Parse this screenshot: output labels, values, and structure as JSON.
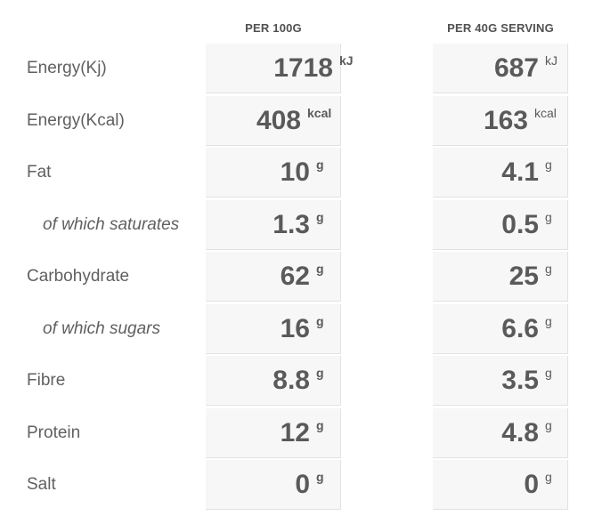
{
  "headers": {
    "per_100g": "PER 100G",
    "per_serving": "PER 40G SERVING"
  },
  "rows": [
    {
      "label": "Energy(Kj)",
      "per_100g": "1718",
      "per_100g_unit": "kJ",
      "per_serving": "687",
      "per_serving_unit": "kJ"
    },
    {
      "label": "Energy(Kcal)",
      "per_100g": "408",
      "per_100g_unit": "kcal",
      "per_serving": "163",
      "per_serving_unit": "kcal"
    },
    {
      "label": "Fat",
      "per_100g": "10",
      "per_100g_unit": "g",
      "per_serving": "4.1",
      "per_serving_unit": "g"
    },
    {
      "label": "of which saturates",
      "per_100g": "1.3",
      "per_100g_unit": "g",
      "per_serving": "0.5",
      "per_serving_unit": "g"
    },
    {
      "label": "Carbohydrate",
      "per_100g": "62",
      "per_100g_unit": "g",
      "per_serving": "25",
      "per_serving_unit": "g"
    },
    {
      "label": "of which sugars",
      "per_100g": "16",
      "per_100g_unit": "g",
      "per_serving": "6.6",
      "per_serving_unit": "g"
    },
    {
      "label": "Fibre",
      "per_100g": "8.8",
      "per_100g_unit": "g",
      "per_serving": "3.5",
      "per_serving_unit": "g"
    },
    {
      "label": "Protein",
      "per_100g": "12",
      "per_100g_unit": "g",
      "per_serving": "4.8",
      "per_serving_unit": "g"
    },
    {
      "label": "Salt",
      "per_100g": "0",
      "per_100g_unit": "g",
      "per_serving": "0",
      "per_serving_unit": "g"
    }
  ]
}
